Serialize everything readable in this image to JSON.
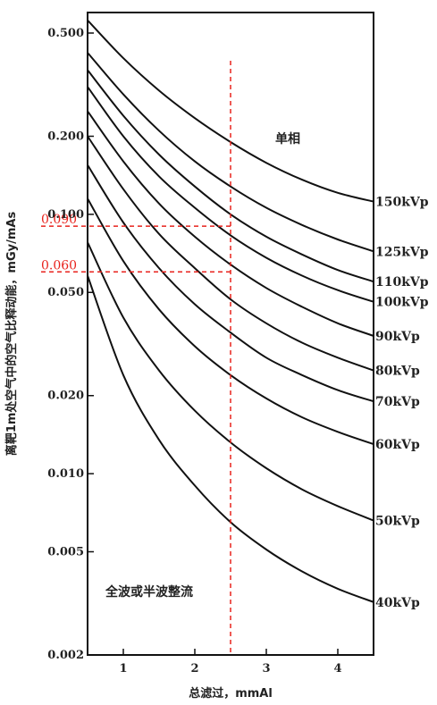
{
  "chart_data": {
    "type": "line",
    "title": "",
    "xlabel": "总滤过，mmAl",
    "ylabel": "离靶1m处空气中的空气比释动能，mGy/mAs",
    "xlim": [
      0.5,
      4.5
    ],
    "ylim": [
      0.002,
      0.6
    ],
    "y_scale": "log",
    "x_ticks": [
      1,
      2,
      3,
      4
    ],
    "x_tick_labels": [
      "1",
      "2",
      "3",
      "4"
    ],
    "y_ticks": [
      0.002,
      0.005,
      0.01,
      0.02,
      0.05,
      0.1,
      0.2,
      0.5
    ],
    "y_tick_labels": [
      "0.002",
      "0.005",
      "0.010",
      "0.020",
      "0.050",
      "0.100",
      "0.200",
      "0.500"
    ],
    "annotations": {
      "region_top": "单相",
      "region_bottom": "全波或半波整流",
      "ref_line_x": 2.5,
      "ref_values": [
        0.09,
        0.06
      ],
      "ref_labels": [
        "0.090",
        "0.060"
      ]
    },
    "series": [
      {
        "name": "150kVp",
        "x": [
          0.5,
          1,
          1.5,
          2,
          2.5,
          3,
          3.5,
          4,
          4.5
        ],
        "values": [
          0.56,
          0.4,
          0.3,
          0.235,
          0.19,
          0.158,
          0.136,
          0.121,
          0.112
        ]
      },
      {
        "name": "125kVp",
        "x": [
          0.5,
          1,
          1.5,
          2,
          2.5,
          3,
          3.5,
          4,
          4.5
        ],
        "values": [
          0.42,
          0.29,
          0.21,
          0.16,
          0.128,
          0.106,
          0.091,
          0.08,
          0.072
        ]
      },
      {
        "name": "110kVp",
        "x": [
          0.5,
          1,
          1.5,
          2,
          2.5,
          3,
          3.5,
          4,
          4.5
        ],
        "values": [
          0.36,
          0.24,
          0.17,
          0.128,
          0.1,
          0.082,
          0.07,
          0.061,
          0.055
        ]
      },
      {
        "name": "100kVp",
        "x": [
          0.5,
          1,
          1.5,
          2,
          2.5,
          3,
          3.5,
          4,
          4.5
        ],
        "values": [
          0.31,
          0.2,
          0.14,
          0.106,
          0.083,
          0.068,
          0.058,
          0.051,
          0.046
        ]
      },
      {
        "name": "90kVp",
        "x": [
          0.5,
          1,
          1.5,
          2,
          2.5,
          3,
          3.5,
          4,
          4.5
        ],
        "values": [
          0.25,
          0.16,
          0.11,
          0.082,
          0.064,
          0.052,
          0.044,
          0.038,
          0.034
        ]
      },
      {
        "name": "80kVp",
        "x": [
          0.5,
          1,
          1.5,
          2,
          2.5,
          3,
          3.5,
          4,
          4.5
        ],
        "values": [
          0.2,
          0.125,
          0.084,
          0.062,
          0.047,
          0.038,
          0.032,
          0.028,
          0.025
        ]
      },
      {
        "name": "70kVp",
        "x": [
          0.5,
          1,
          1.5,
          2,
          2.5,
          3,
          3.5,
          4,
          4.5
        ],
        "values": [
          0.155,
          0.093,
          0.062,
          0.045,
          0.035,
          0.028,
          0.024,
          0.021,
          0.019
        ]
      },
      {
        "name": "60kVp",
        "x": [
          0.5,
          1,
          1.5,
          2,
          2.5,
          3,
          3.5,
          4,
          4.5
        ],
        "values": [
          0.115,
          0.066,
          0.043,
          0.031,
          0.024,
          0.0195,
          0.0165,
          0.0145,
          0.013
        ]
      },
      {
        "name": "50kVp",
        "x": [
          0.5,
          1,
          1.5,
          2,
          2.5,
          3,
          3.5,
          4,
          4.5
        ],
        "values": [
          0.078,
          0.04,
          0.025,
          0.0175,
          0.0132,
          0.0105,
          0.0087,
          0.0075,
          0.0066
        ]
      },
      {
        "name": "40kVp",
        "x": [
          0.5,
          1,
          1.5,
          2,
          2.5,
          3,
          3.5,
          4,
          4.5
        ],
        "values": [
          0.058,
          0.024,
          0.0135,
          0.009,
          0.0065,
          0.0051,
          0.0042,
          0.0036,
          0.0032
        ]
      }
    ]
  }
}
